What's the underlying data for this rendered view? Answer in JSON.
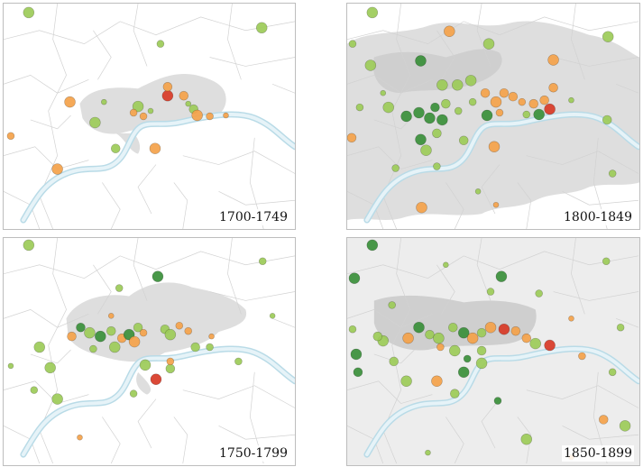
{
  "colors": {
    "light_green": "#9ccb58",
    "dark_green": "#3a8f3a",
    "orange": "#f4a24a",
    "red": "#d83a26",
    "urban": "#dedede",
    "river": "#b9dbe7"
  },
  "panels": [
    {
      "id": "p1",
      "label": "1700-1749"
    },
    {
      "id": "p2",
      "label": "1800-1849"
    },
    {
      "id": "p3",
      "label": "1750-1799"
    },
    {
      "id": "p4",
      "label": "1850-1899"
    }
  ]
}
